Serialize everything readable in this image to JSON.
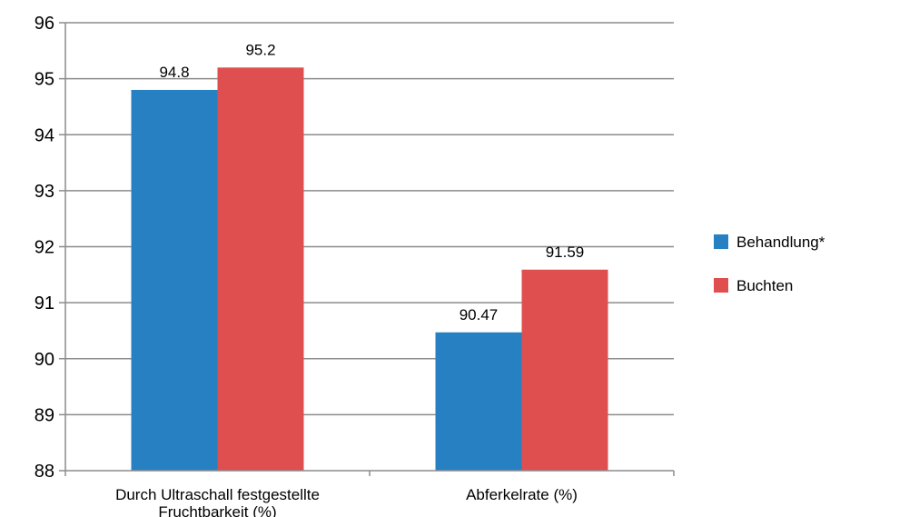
{
  "chart_data": {
    "type": "bar",
    "title": "",
    "xlabel": "",
    "ylabel": "",
    "categories": [
      [
        "Durch Ultraschall festgestellte",
        "Fruchtbarkeit  (%)"
      ],
      [
        "Abferkelrate  (%)"
      ]
    ],
    "series": [
      {
        "name": "Behandlung*",
        "color": "#2680c2",
        "values": [
          94.8,
          90.47
        ]
      },
      {
        "name": "Buchten",
        "color": "#e04f4f",
        "values": [
          95.2,
          91.59
        ]
      }
    ],
    "ylim": [
      88,
      96
    ],
    "yticks": [
      "88",
      "89",
      "90",
      "91",
      "92",
      "93",
      "94",
      "95",
      "96"
    ],
    "data_labels": [
      [
        "94.8",
        "90.47"
      ],
      [
        "95.2",
        "91.59"
      ]
    ],
    "grid": true,
    "legend_position": "right"
  }
}
